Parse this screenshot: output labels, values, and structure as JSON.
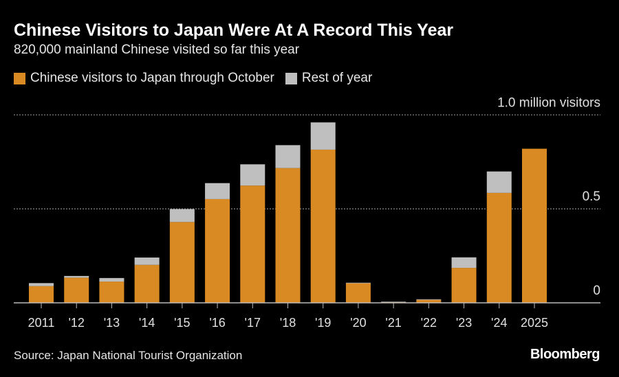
{
  "chart_data": {
    "type": "bar",
    "stacked": true,
    "title": "Chinese Visitors to Japan Were At A Record This Year",
    "subtitle": "820,000 mainland Chinese visited so far this year",
    "categories": [
      "2011",
      "'12",
      "'13",
      "'14",
      "'15",
      "'16",
      "'17",
      "'18",
      "'19",
      "'20",
      "'21",
      "'22",
      "'23",
      "'24",
      "2025"
    ],
    "series": [
      {
        "name": "Chinese visitors to Japan through October",
        "color": "#d98a22",
        "values": [
          0.089,
          0.134,
          0.113,
          0.202,
          0.43,
          0.552,
          0.624,
          0.717,
          0.815,
          0.104,
          0.005,
          0.016,
          0.186,
          0.585,
          0.82
        ]
      },
      {
        "name": "Rest of year",
        "color": "#bfbfbf",
        "values": [
          0.016,
          0.009,
          0.019,
          0.039,
          0.069,
          0.085,
          0.113,
          0.122,
          0.145,
          0.003,
          0.001,
          0.003,
          0.056,
          0.114,
          0
        ]
      }
    ],
    "ylabel": "1.0 million visitors",
    "yticks": [
      {
        "value": 0,
        "label": "0"
      },
      {
        "value": 0.5,
        "label": "0.5"
      },
      {
        "value": 1.0,
        "label": "1.0 million visitors"
      }
    ],
    "ylim": [
      0,
      1.0
    ],
    "grid": true,
    "legend_position": "top-left"
  },
  "footer": {
    "source": "Source: Japan National Tourist Organization",
    "brand": "Bloomberg"
  }
}
